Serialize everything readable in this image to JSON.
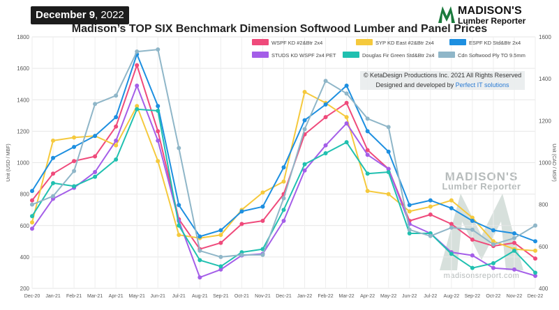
{
  "header": {
    "date_main": "December 9",
    "date_year": ", 2022",
    "logo_line1": "MADISON'S",
    "logo_line2": "Lumber Reporter"
  },
  "footer": {
    "copyright": "© KetaDesign Productions Inc. 2021 All Rights Reserved",
    "developed_prefix": "Designed and developed by ",
    "developed_link": "Perfect IT solutions",
    "watermark_line1": "MADISON'S",
    "watermark_line2": "Lumber Reporter",
    "watermark_line3": "madisonsreport.com"
  },
  "chart_data": {
    "type": "line",
    "title": "Madison’s TOP SIX Benchmark Dimension Softwood Lumber and Panel Prices",
    "ylabel": "Unit (USD / MBF)",
    "y2label": "Unit (CAD / MSF)",
    "ylim": [
      200,
      1800
    ],
    "y2lim": [
      400,
      1600
    ],
    "yticks": [
      200,
      400,
      600,
      800,
      1000,
      1200,
      1400,
      1600,
      1800
    ],
    "y2ticks": [
      400,
      600,
      800,
      1000,
      1200,
      1400,
      1600
    ],
    "grid": true,
    "categories": [
      "Dec-20",
      "Jan-21",
      "Feb-21",
      "Mar-21",
      "Apr-21",
      "May-21",
      "Jun-21",
      "Jul-21",
      "Aug-21",
      "Sep-21",
      "Oct-21",
      "Nov-21",
      "Dec-21",
      "Jan-22",
      "Feb-22",
      "Mar-22",
      "Apr-22",
      "May-22",
      "Jun-22",
      "Jul-22",
      "Aug-22",
      "Sep-22",
      "Oct-22",
      "Nov-22",
      "Dec-22"
    ],
    "series": [
      {
        "name": "WSPF KD #2&Btr 2x4",
        "color": "#ef4a7b",
        "axis": "left",
        "values": [
          760,
          930,
          1010,
          1040,
          1230,
          1620,
          1200,
          640,
          450,
          490,
          610,
          630,
          800,
          1180,
          1290,
          1380,
          1080,
          960,
          630,
          670,
          610,
          510,
          470,
          490,
          390
        ]
      },
      {
        "name": "SYP KD East #2&Btr 2x4",
        "color": "#f5c93d",
        "axis": "left",
        "values": [
          620,
          1140,
          1160,
          1170,
          1110,
          1360,
          1010,
          540,
          520,
          540,
          700,
          810,
          880,
          1450,
          1380,
          1290,
          820,
          800,
          690,
          720,
          760,
          650,
          500,
          450,
          440
        ]
      },
      {
        "name": "ESPF KD Std&Btr 2x4",
        "color": "#1d8fe0",
        "axis": "left",
        "values": [
          820,
          1030,
          1100,
          1170,
          1290,
          1690,
          1360,
          730,
          530,
          570,
          690,
          720,
          970,
          1270,
          1370,
          1490,
          1200,
          1070,
          730,
          760,
          710,
          630,
          570,
          550,
          500
        ]
      },
      {
        "name": "STUDS KD WSPF 2x4 PET",
        "color": "#a45ee8",
        "axis": "left",
        "values": [
          580,
          770,
          840,
          940,
          1140,
          1490,
          1140,
          630,
          270,
          320,
          410,
          420,
          630,
          950,
          1110,
          1250,
          1050,
          960,
          610,
          550,
          430,
          410,
          330,
          320,
          280
        ]
      },
      {
        "name": "Douglas Fir Green Std&Btr 2x4",
        "color": "#20c0b0",
        "axis": "left",
        "values": [
          660,
          870,
          850,
          910,
          1020,
          1340,
          1330,
          600,
          380,
          340,
          430,
          450,
          700,
          990,
          1060,
          1130,
          930,
          940,
          550,
          550,
          420,
          330,
          360,
          440,
          300
        ]
      },
      {
        "name": "Cdn Softwood Ply TO 9.5mm",
        "color": "#8fb6c8",
        "axis": "right",
        "values": [
          800,
          840,
          960,
          1280,
          1320,
          1530,
          1540,
          1070,
          580,
          550,
          560,
          560,
          830,
          1160,
          1390,
          1330,
          1210,
          1170,
          680,
          650,
          690,
          680,
          610,
          640,
          700
        ]
      }
    ]
  }
}
